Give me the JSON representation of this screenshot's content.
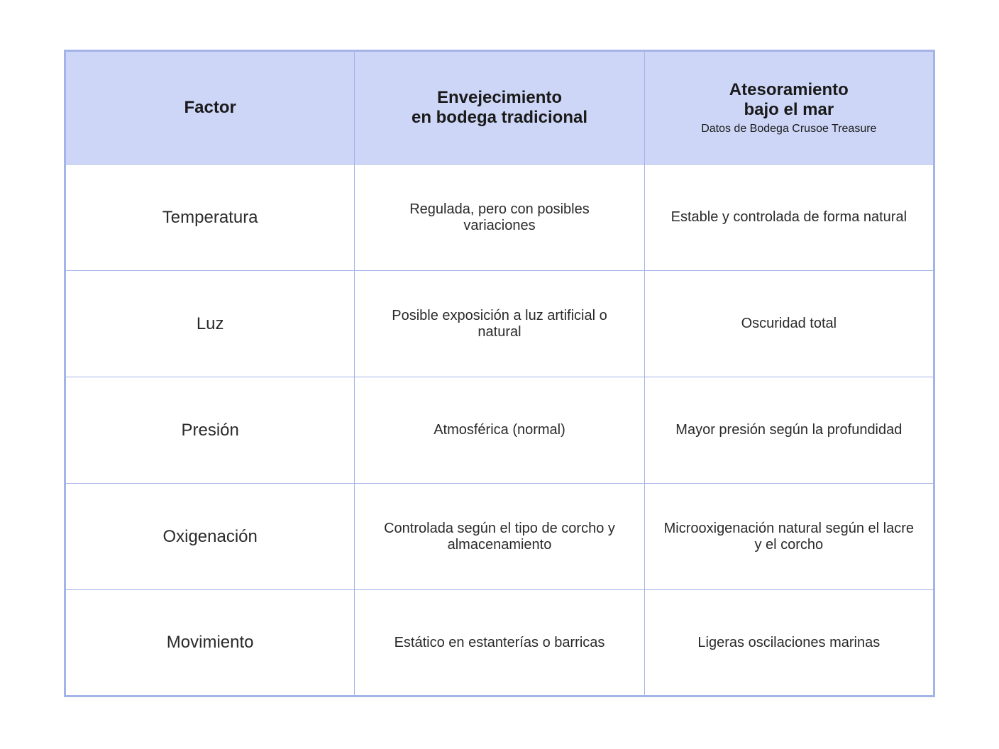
{
  "table": {
    "type": "table",
    "border_color": "#a5b4e8",
    "header_bg": "#cdd6f6",
    "row_bg": "#ffffff",
    "text_color": "#1a1a1a",
    "header_fontsize": 24,
    "cell_fontsize": 20,
    "factor_fontsize": 24,
    "subtitle_fontsize": 16,
    "columns": [
      {
        "label": "Factor"
      },
      {
        "label": "Envejecimiento\nen bodega tradicional"
      },
      {
        "label": "Atesoramiento\nbajo el mar",
        "subtitle": "Datos de Bodega Crusoe Treasure"
      }
    ],
    "rows": [
      {
        "factor": "Temperatura",
        "traditional": "Regulada, pero con posibles variaciones",
        "sea": "Estable y controlada de forma natural"
      },
      {
        "factor": "Luz",
        "traditional": "Posible exposición a luz artificial o natural",
        "sea": "Oscuridad total"
      },
      {
        "factor": "Presión",
        "traditional": "Atmosférica (normal)",
        "sea": "Mayor presión según la profundidad"
      },
      {
        "factor": "Oxigenación",
        "traditional": "Controlada según el tipo de corcho y almacenamiento",
        "sea": "Microoxigenación natural según el lacre y el corcho"
      },
      {
        "factor": "Movimiento",
        "traditional": "Estático en estanterías o barricas",
        "sea": "Ligeras oscilaciones marinas"
      }
    ]
  }
}
